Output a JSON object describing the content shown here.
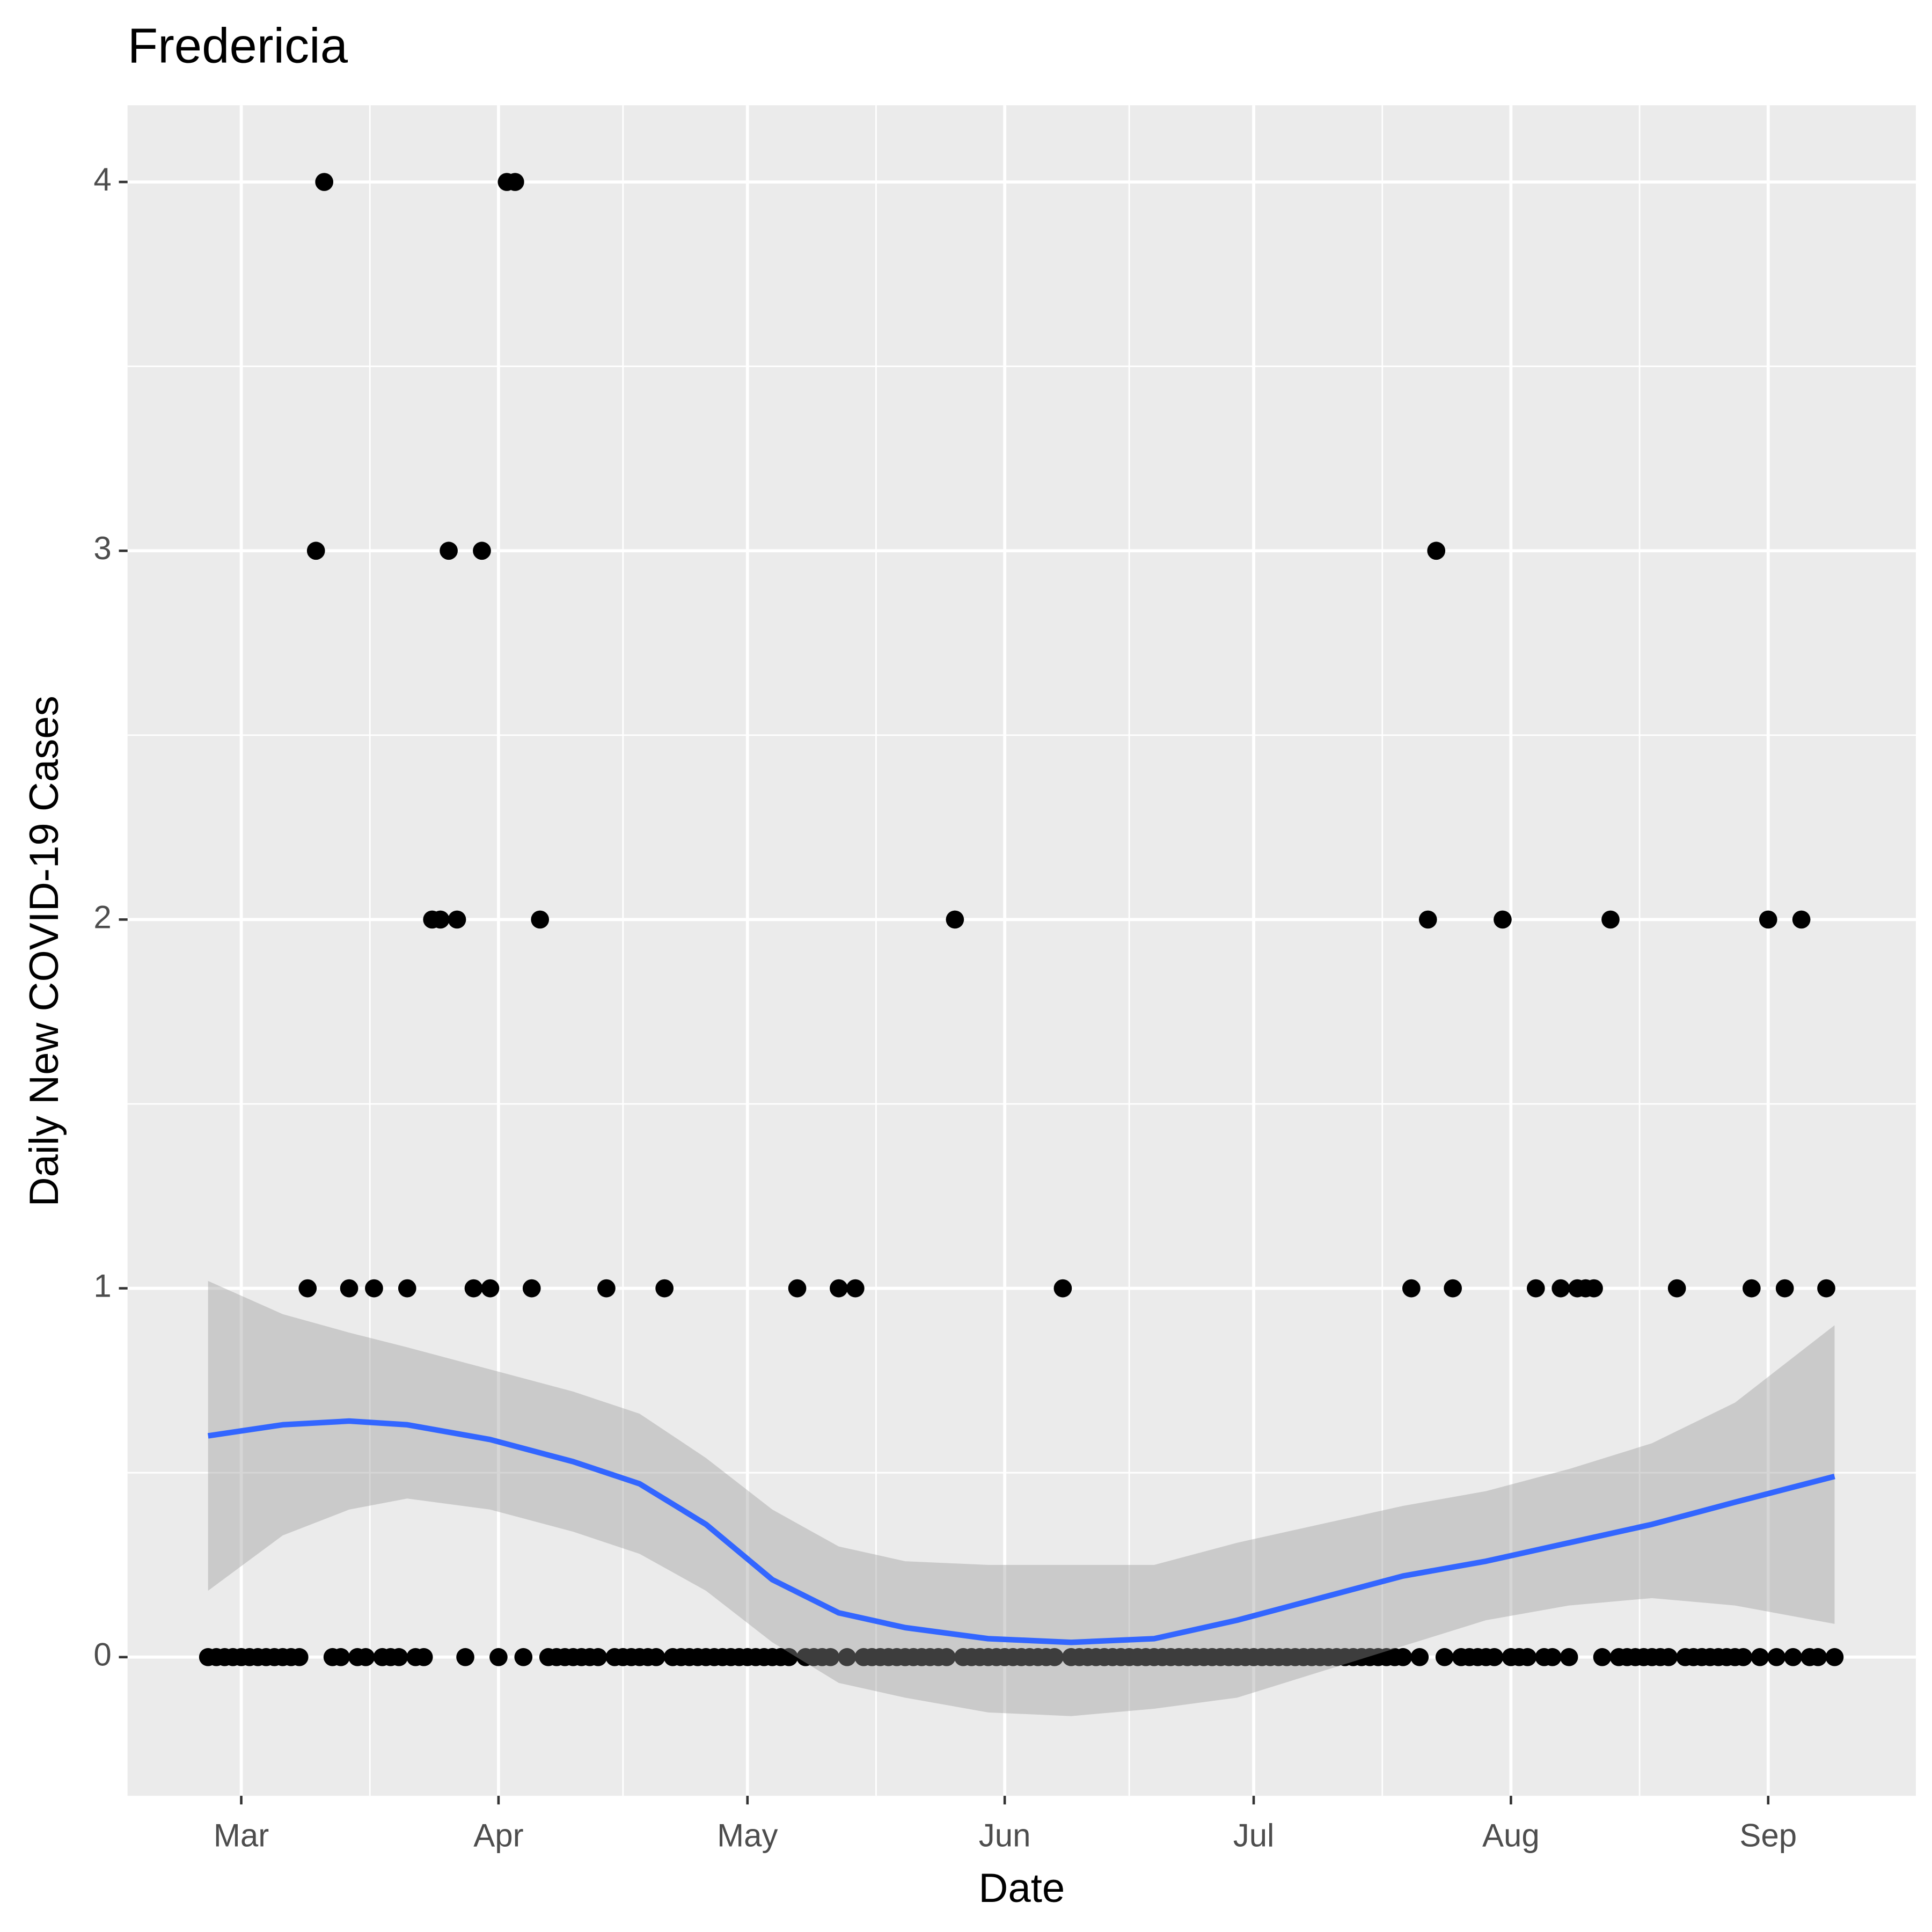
{
  "chart_data": {
    "type": "scatter",
    "title": "Fredericia",
    "x_label": "Date",
    "y_label": "Daily New COVID-19 Cases",
    "xlim": [
      -13.7,
      201.8
    ],
    "ylim": [
      -0.376,
      4.208
    ],
    "xticks": [
      {
        "value": 0,
        "label": "Mar"
      },
      {
        "value": 31,
        "label": "Apr"
      },
      {
        "value": 61,
        "label": "May"
      },
      {
        "value": 92,
        "label": "Jun"
      },
      {
        "value": 122,
        "label": "Jul"
      },
      {
        "value": 153,
        "label": "Aug"
      },
      {
        "value": 184,
        "label": "Sep"
      }
    ],
    "yticks": [
      0,
      1,
      2,
      3,
      4
    ],
    "grid": true,
    "series": [
      {
        "color": "#000000",
        "x": [
          -4,
          -3,
          -2,
          -1,
          0,
          1,
          2,
          3,
          4,
          5,
          6,
          7,
          8,
          9,
          10,
          11,
          12,
          13,
          14,
          15,
          16,
          17,
          18,
          19,
          20,
          21,
          22,
          23,
          24,
          25,
          26,
          27,
          28,
          29,
          30,
          31,
          32,
          33,
          34,
          35,
          36,
          37,
          38,
          39,
          40,
          41,
          42,
          43,
          44,
          45,
          46,
          47,
          48,
          49,
          50,
          51,
          52,
          53,
          54,
          55,
          56,
          57,
          58,
          59,
          60,
          61,
          62,
          63,
          64,
          65,
          66,
          67,
          68,
          69,
          70,
          71,
          72,
          73,
          74,
          75,
          76,
          77,
          78,
          79,
          80,
          81,
          82,
          83,
          84,
          85,
          86,
          87,
          88,
          89,
          90,
          91,
          92,
          93,
          94,
          95,
          96,
          97,
          98,
          99,
          100,
          101,
          102,
          103,
          104,
          105,
          106,
          107,
          108,
          109,
          110,
          111,
          112,
          113,
          114,
          115,
          116,
          117,
          118,
          119,
          120,
          121,
          122,
          123,
          124,
          125,
          126,
          127,
          128,
          129,
          130,
          131,
          132,
          133,
          134,
          135,
          136,
          137,
          138,
          139,
          140,
          141,
          142,
          143,
          144,
          145,
          146,
          147,
          148,
          149,
          150,
          151,
          152,
          153,
          154,
          155,
          156,
          157,
          158,
          159,
          160,
          161,
          162,
          163,
          164,
          165,
          166,
          167,
          168,
          169,
          170,
          171,
          172,
          173,
          174,
          175,
          176,
          177,
          178,
          179,
          180,
          181,
          182,
          183,
          184,
          185,
          186,
          187,
          188,
          189,
          190,
          191,
          192
        ],
        "values": [
          0,
          0,
          0,
          0,
          0,
          0,
          0,
          0,
          0,
          0,
          0,
          0,
          1,
          3,
          4,
          0,
          0,
          1,
          0,
          0,
          1,
          0,
          0,
          0,
          1,
          0,
          0,
          2,
          2,
          3,
          2,
          0,
          1,
          3,
          1,
          0,
          4,
          4,
          0,
          1,
          2,
          0,
          0,
          0,
          0,
          0,
          0,
          0,
          1,
          0,
          0,
          0,
          0,
          0,
          0,
          1,
          0,
          0,
          0,
          0,
          0,
          0,
          0,
          0,
          0,
          0,
          0,
          0,
          0,
          0,
          0,
          1,
          0,
          0,
          0,
          0,
          1,
          0,
          1,
          0,
          0,
          0,
          0,
          0,
          0,
          0,
          0,
          0,
          0,
          0,
          2,
          0,
          0,
          0,
          0,
          0,
          0,
          0,
          0,
          0,
          0,
          0,
          0,
          1,
          0,
          0,
          0,
          0,
          0,
          0,
          0,
          0,
          0,
          0,
          0,
          0,
          0,
          0,
          0,
          0,
          0,
          0,
          0,
          0,
          0,
          0,
          0,
          0,
          0,
          0,
          0,
          0,
          0,
          0,
          0,
          0,
          0,
          0,
          0,
          0,
          0,
          0,
          0,
          0,
          0,
          1,
          0,
          2,
          3,
          0,
          1,
          0,
          0,
          0,
          0,
          0,
          2,
          0,
          0,
          0,
          1,
          0,
          0,
          1,
          0,
          1,
          1,
          1,
          0,
          2,
          0,
          0,
          0,
          0,
          0,
          0,
          0,
          1,
          0,
          0,
          0,
          0,
          0,
          0,
          0,
          0,
          1,
          0,
          2,
          0,
          1,
          0,
          2,
          0,
          0,
          1,
          0
        ]
      }
    ],
    "smooth": {
      "color": "#3366ff",
      "band_color": "#999999",
      "x": [
        -4,
        5,
        13,
        20,
        30,
        40,
        48,
        56,
        64,
        72,
        80,
        90,
        100,
        110,
        120,
        130,
        140,
        150,
        160,
        170,
        180,
        192
      ],
      "values": [
        0.6,
        0.63,
        0.64,
        0.63,
        0.59,
        0.53,
        0.47,
        0.36,
        0.21,
        0.12,
        0.08,
        0.05,
        0.04,
        0.05,
        0.1,
        0.16,
        0.22,
        0.26,
        0.31,
        0.36,
        0.42,
        0.49
      ],
      "lower": [
        0.18,
        0.33,
        0.4,
        0.43,
        0.4,
        0.34,
        0.28,
        0.18,
        0.04,
        -0.07,
        -0.11,
        -0.15,
        -0.16,
        -0.14,
        -0.11,
        -0.04,
        0.03,
        0.1,
        0.14,
        0.16,
        0.14,
        0.09
      ],
      "upper": [
        1.02,
        0.93,
        0.88,
        0.84,
        0.78,
        0.72,
        0.66,
        0.54,
        0.4,
        0.3,
        0.26,
        0.25,
        0.25,
        0.25,
        0.31,
        0.36,
        0.41,
        0.45,
        0.51,
        0.58,
        0.69,
        0.9
      ]
    }
  }
}
